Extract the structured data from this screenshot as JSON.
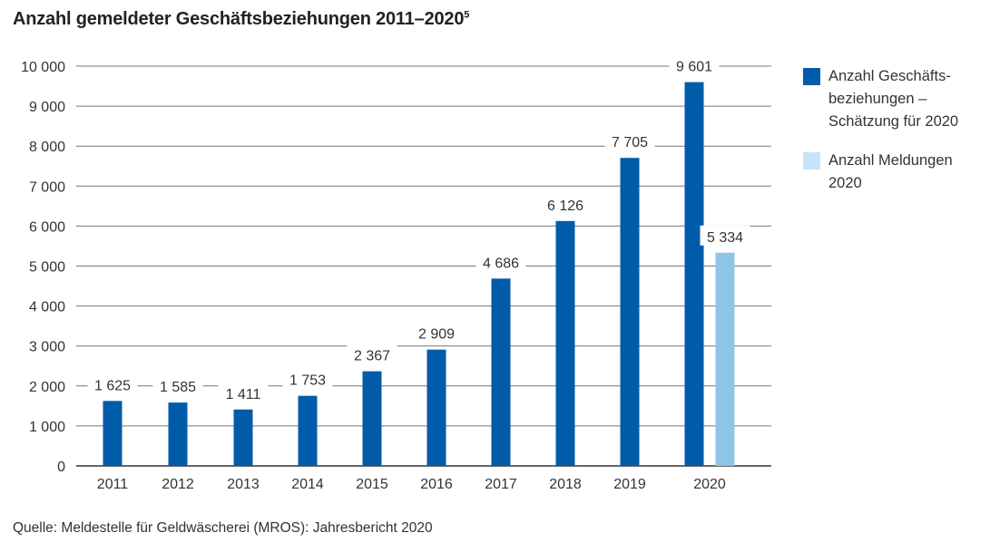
{
  "chart_data": {
    "type": "bar",
    "title": "Anzahl gemeldeter Geschäftsbeziehungen 2011–2020",
    "title_footnote": "5",
    "categories": [
      "2011",
      "2012",
      "2013",
      "2014",
      "2015",
      "2016",
      "2017",
      "2018",
      "2019",
      "2020"
    ],
    "series": [
      {
        "name": "Anzahl Geschäfts-beziehungen – Schätzung für 2020",
        "color": "#005ca9",
        "values": [
          1625,
          1585,
          1411,
          1753,
          2367,
          2909,
          4686,
          6126,
          7705,
          9601
        ],
        "labels": [
          "1 625",
          "1 585",
          "1 411",
          "1 753",
          "2 367",
          "2 909",
          "4 686",
          "6 126",
          "7 705",
          "9 601"
        ]
      },
      {
        "name": "Anzahl Meldungen 2020",
        "color": "#8ec5e6",
        "legend_color": "#c5e4f6",
        "values": [
          null,
          null,
          null,
          null,
          null,
          null,
          null,
          null,
          null,
          5334
        ],
        "labels": [
          null,
          null,
          null,
          null,
          null,
          null,
          null,
          null,
          null,
          "5 334"
        ]
      }
    ],
    "yticks": [
      "0",
      "1 000",
      "2 000",
      "3 000",
      "4 000",
      "5 000",
      "6 000",
      "7 000",
      "8 000",
      "9 000",
      "10 000"
    ],
    "ylim": [
      0,
      10000
    ],
    "grid": true,
    "legend_position": "right",
    "source": "Quelle: Meldestelle für Geldwäscherei (MROS): Jahresbericht 2020"
  },
  "legend": {
    "item1_lines": [
      "Anzahl Geschäfts-",
      "beziehungen –",
      "Schätzung für 2020"
    ],
    "item2_lines": [
      "Anzahl Meldungen",
      "2020"
    ]
  }
}
